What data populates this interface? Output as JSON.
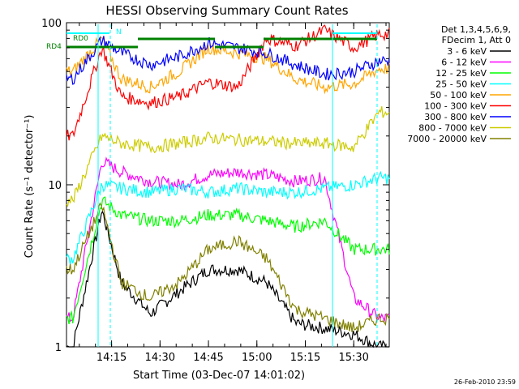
{
  "chart_data": {
    "type": "line",
    "title": "HESSI Observing Summary Count Rates",
    "xlabel": "Start Time (03-Dec-07 14:01:02)",
    "ylabel": "Count Rate (s⁻¹ detector⁻¹)",
    "yscale": "log",
    "ylim": [
      1,
      100
    ],
    "y_tick_labels": [
      "1",
      "10",
      "100"
    ],
    "xlim": [
      "14:01:02",
      "15:41:00"
    ],
    "x_tick_labels": [
      "14:15",
      "14:30",
      "14:45",
      "15:00",
      "15:15",
      "15:30"
    ],
    "x_tick_values": [
      14.25,
      14.5,
      14.75,
      15.0,
      15.25,
      15.5
    ],
    "date_stamp": "26-Feb-2010 23:59",
    "legend_header": [
      "Det 1,3,4,5,6,9,",
      "FDecim 1, Att 0"
    ],
    "series": [
      {
        "name": "3 - 6 keV",
        "color": "#000000",
        "x": [
          14.05,
          14.2,
          14.3,
          14.45,
          14.6,
          14.75,
          14.9,
          15.05,
          15.2,
          15.35,
          15.5,
          15.63
        ],
        "values": [
          1.0,
          7.0,
          2.5,
          1.6,
          2.2,
          3.0,
          3.0,
          2.5,
          1.4,
          1.3,
          1.2,
          1.0
        ]
      },
      {
        "name": "6 - 12 keV",
        "color": "#ff00ff",
        "x": [
          14.05,
          14.2,
          14.3,
          14.45,
          14.6,
          14.75,
          14.9,
          15.05,
          15.2,
          15.35,
          15.5,
          15.63
        ],
        "values": [
          1.5,
          14.0,
          12.0,
          10.5,
          10.0,
          11.5,
          12.0,
          11.5,
          10.5,
          11.0,
          2.0,
          1.5
        ]
      },
      {
        "name": "12 - 25 keV",
        "color": "#00ff00",
        "x": [
          14.05,
          14.2,
          14.3,
          14.45,
          14.6,
          14.75,
          14.9,
          15.05,
          15.2,
          15.35,
          15.5,
          15.63
        ],
        "values": [
          1.5,
          8.0,
          6.5,
          6.0,
          6.0,
          6.5,
          6.5,
          6.0,
          5.5,
          6.0,
          4.0,
          4.0
        ]
      },
      {
        "name": "25 - 50 keV",
        "color": "#00ffff",
        "x": [
          14.05,
          14.2,
          14.3,
          14.45,
          14.6,
          14.75,
          14.9,
          15.05,
          15.2,
          15.35,
          15.5,
          15.63
        ],
        "values": [
          3.5,
          10.0,
          9.5,
          9.0,
          9.5,
          9.0,
          9.5,
          9.0,
          9.0,
          9.5,
          10.0,
          11.0
        ]
      },
      {
        "name": "50 - 100 keV",
        "color": "#ffa500",
        "x": [
          14.05,
          14.2,
          14.3,
          14.45,
          14.6,
          14.75,
          14.9,
          15.05,
          15.2,
          15.35,
          15.5,
          15.63
        ],
        "values": [
          50.0,
          80.0,
          45.0,
          40.0,
          50.0,
          70.0,
          65.0,
          60.0,
          45.0,
          40.0,
          42.0,
          52.0
        ]
      },
      {
        "name": "100 - 300 keV",
        "color": "#ff0000",
        "x": [
          14.05,
          14.2,
          14.3,
          14.45,
          14.6,
          14.75,
          14.9,
          15.05,
          15.2,
          15.35,
          15.5,
          15.63
        ],
        "values": [
          20.0,
          70.0,
          35.0,
          32.0,
          35.0,
          43.0,
          40.0,
          80.0,
          72.0,
          90.0,
          70.0,
          85.0
        ]
      },
      {
        "name": "300 - 800 keV",
        "color": "#0000ff",
        "x": [
          14.05,
          14.2,
          14.3,
          14.45,
          14.6,
          14.75,
          14.9,
          15.05,
          15.2,
          15.35,
          15.5,
          15.63
        ],
        "values": [
          45.0,
          78.0,
          65.0,
          55.0,
          62.0,
          75.0,
          70.0,
          65.0,
          55.0,
          48.0,
          50.0,
          58.0
        ]
      },
      {
        "name": "800 - 7000 keV",
        "color": "#cccc00",
        "x": [
          14.05,
          14.2,
          14.3,
          14.45,
          14.6,
          14.75,
          14.9,
          15.05,
          15.2,
          15.35,
          15.5,
          15.63
        ],
        "values": [
          8.0,
          20.0,
          18.0,
          17.0,
          18.0,
          19.5,
          19.0,
          18.5,
          18.0,
          18.0,
          17.0,
          28.0
        ]
      },
      {
        "name": "7000 - 20000 keV",
        "color": "#808000",
        "x": [
          14.05,
          14.2,
          14.3,
          14.45,
          14.6,
          14.75,
          14.9,
          15.05,
          15.2,
          15.35,
          15.5,
          15.63
        ],
        "values": [
          3.0,
          7.5,
          2.5,
          2.0,
          2.5,
          4.0,
          4.5,
          3.5,
          1.7,
          1.5,
          1.3,
          1.5
        ]
      }
    ],
    "flags": [
      {
        "name": "RD0",
        "color": "#00ffff"
      },
      {
        "name": "RD4",
        "color": "#008000"
      },
      {
        "name": "N",
        "color": "#00ffff"
      }
    ]
  }
}
